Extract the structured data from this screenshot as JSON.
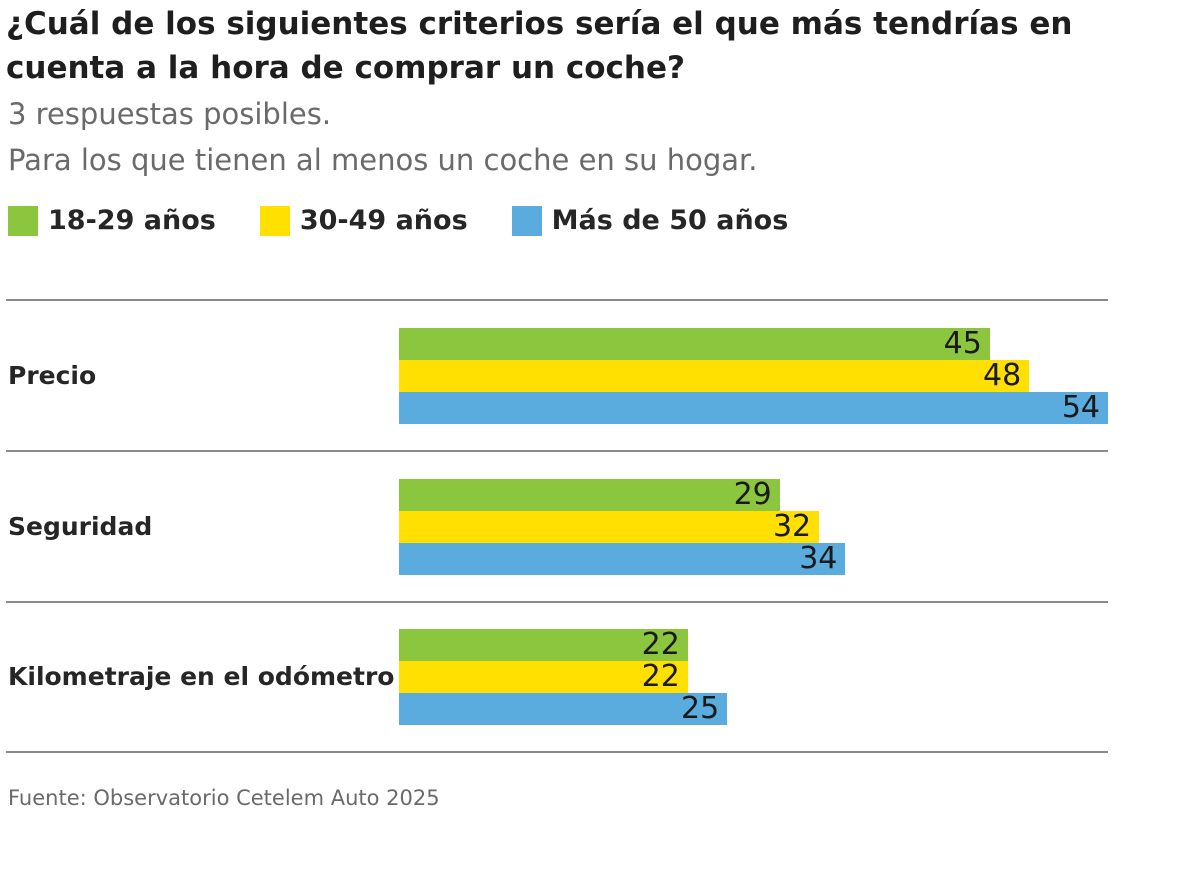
{
  "title": "¿Cuál de los siguientes criterios sería el que más tendrías en cuenta a la hora de comprar un coche?",
  "subtitle_1": "3 respuestas posibles.",
  "subtitle_2": "Para los que tienen al menos un coche en su hogar.",
  "source": "Fuente: Observatorio Cetelem Auto 2025",
  "colors": {
    "s0": "#8cc63f",
    "s1": "#ffe000",
    "s2": "#5aacde"
  },
  "chart_data": {
    "type": "bar",
    "orientation": "horizontal",
    "title": "¿Cuál de los siguientes criterios sería el que más tendrías en cuenta a la hora de comprar un coche?",
    "categories": [
      "Precio",
      "Seguridad",
      "Kilometraje en el odómetro"
    ],
    "series": [
      {
        "name": "18-29 años",
        "color": "#8cc63f",
        "values": [
          45,
          29,
          22
        ]
      },
      {
        "name": "30-49 años",
        "color": "#ffe000",
        "values": [
          48,
          32,
          22
        ]
      },
      {
        "name": "Más de 50 años",
        "color": "#5aacde",
        "values": [
          54,
          34,
          25
        ]
      }
    ],
    "xlim": [
      0,
      54
    ],
    "legend": "top-left",
    "grid": false
  }
}
